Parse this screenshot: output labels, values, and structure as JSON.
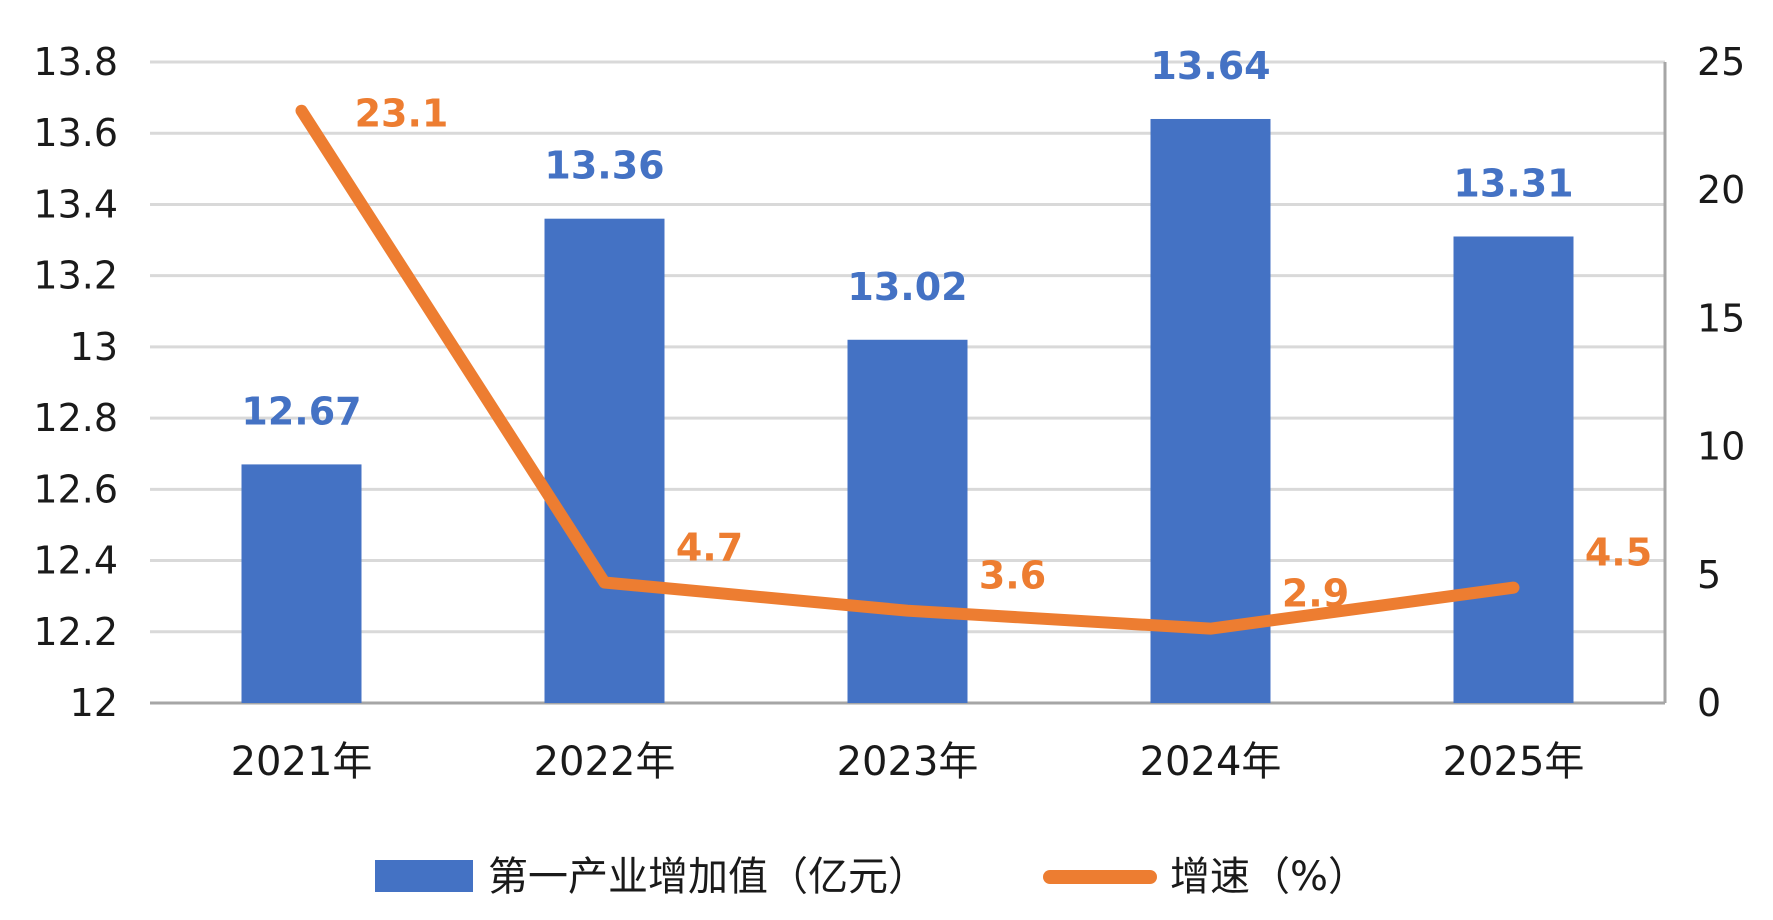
{
  "chart_data": {
    "type": "bar",
    "categories": [
      "2021年",
      "2022年",
      "2023年",
      "2024年",
      "2025年"
    ],
    "series": [
      {
        "name": "第一产业增加值（亿元）",
        "type": "bar",
        "axis": "left",
        "color": "#4472c4",
        "values": [
          12.67,
          13.36,
          13.02,
          13.64,
          13.31
        ],
        "labels": [
          "12.67",
          "13.36",
          "13.02",
          "13.64",
          "13.31"
        ]
      },
      {
        "name": "增速（%）",
        "type": "line",
        "axis": "right",
        "color": "#ed7d31",
        "values": [
          23.1,
          4.7,
          3.6,
          2.9,
          4.5
        ],
        "labels": [
          "23.1",
          "4.7",
          "3.6",
          "2.9",
          "4.5"
        ]
      }
    ],
    "y_left": {
      "min": 12,
      "max": 13.8,
      "ticks": [
        "12",
        "12.2",
        "12.4",
        "12.6",
        "12.8",
        "13",
        "13.2",
        "13.4",
        "13.6",
        "13.8"
      ]
    },
    "y_right": {
      "min": 0,
      "max": 25,
      "ticks": [
        "0",
        "5",
        "10",
        "15",
        "20",
        "25"
      ]
    },
    "grid": true,
    "legend_position": "bottom",
    "colors": {
      "gridline": "#d9d9d9",
      "axis": "#a6a6a6"
    }
  }
}
